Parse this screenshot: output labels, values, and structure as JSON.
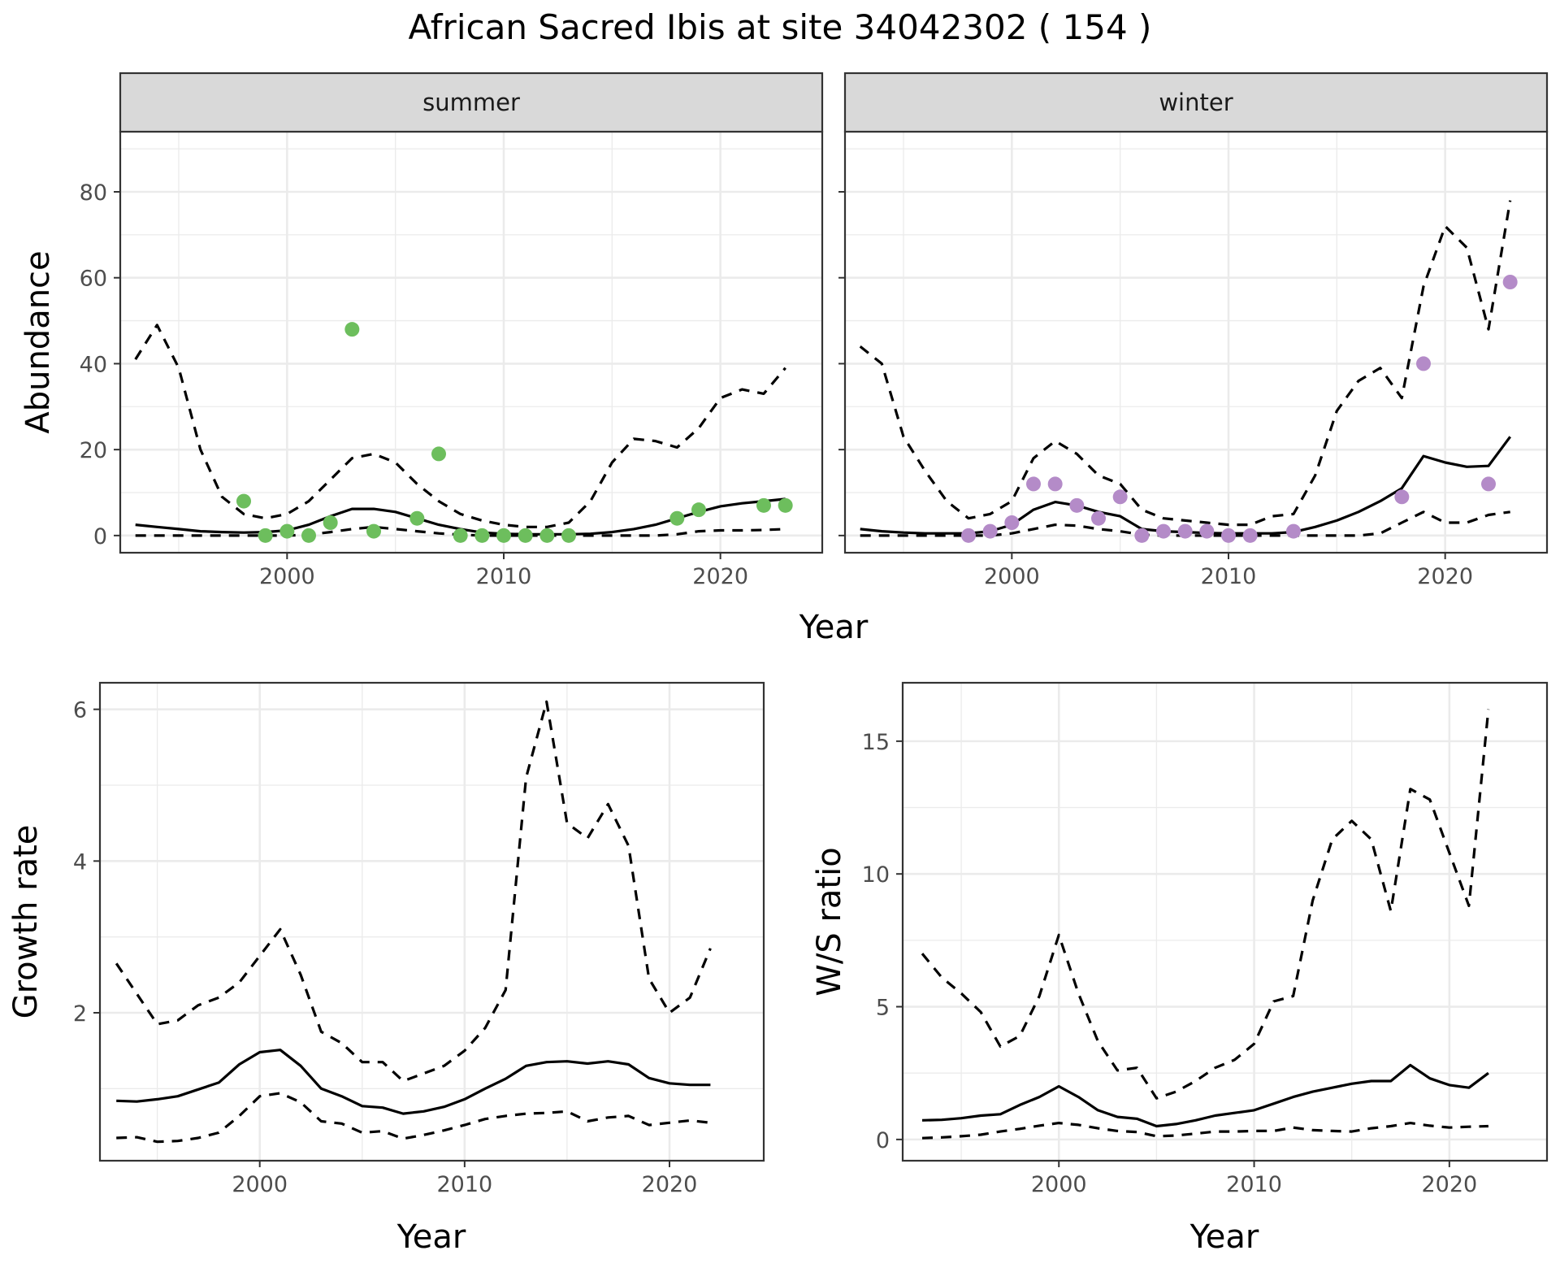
{
  "title": "African Sacred Ibis at site 34042302 ( 154 )",
  "colors": {
    "summer_points": "#6DBE5D",
    "winter_points": "#B48BC8",
    "strip_fill": "#D9D9D9",
    "grid": "#EBEBEB",
    "line": "#000000"
  },
  "chart_data": [
    {
      "type": "line",
      "panel": "summer",
      "strip_label": "summer",
      "xlabel": "Year",
      "ylabel": "Abundance",
      "xlim": [
        1992.3,
        2024.7
      ],
      "ylim": [
        -4,
        94
      ],
      "xticks": [
        2000,
        2010,
        2020
      ],
      "yticks": [
        0,
        20,
        40,
        60,
        80
      ],
      "x": [
        1993,
        1994,
        1995,
        1996,
        1997,
        1998,
        1999,
        2000,
        2001,
        2002,
        2003,
        2004,
        2005,
        2006,
        2007,
        2008,
        2009,
        2010,
        2011,
        2012,
        2013,
        2014,
        2015,
        2016,
        2017,
        2018,
        2019,
        2020,
        2021,
        2022,
        2023
      ],
      "series": [
        {
          "style": "dashed",
          "values": [
            41,
            49,
            39,
            20,
            9,
            5,
            4,
            5,
            8,
            13,
            18,
            19,
            17,
            12,
            8,
            5,
            3.5,
            2.5,
            2,
            2,
            3,
            8,
            17,
            22.5,
            22,
            20.5,
            25,
            32,
            34,
            33,
            39
          ]
        },
        {
          "style": "solid",
          "values": [
            2.5,
            2,
            1.5,
            1,
            0.8,
            0.7,
            0.8,
            1.2,
            2.5,
            4.5,
            6.2,
            6.2,
            5.5,
            4,
            2.5,
            1.5,
            0.7,
            0.4,
            0.3,
            0.3,
            0.3,
            0.4,
            0.8,
            1.5,
            2.5,
            4,
            5.5,
            6.8,
            7.5,
            8,
            8.5
          ]
        },
        {
          "style": "dashed",
          "values": [
            0,
            0,
            0,
            0,
            0,
            0,
            0,
            0,
            0.2,
            0.8,
            1.5,
            2,
            1.5,
            1,
            0.5,
            0.2,
            0,
            0,
            0,
            0,
            0,
            0,
            0,
            0,
            0,
            0.3,
            1,
            1.2,
            1.2,
            1.3,
            1.5
          ]
        }
      ],
      "points": {
        "x": [
          1998,
          1999,
          2000,
          2001,
          2002,
          2003,
          2004,
          2006,
          2007,
          2008,
          2009,
          2010,
          2011,
          2012,
          2013,
          2018,
          2019,
          2022,
          2023
        ],
        "y": [
          8,
          0,
          1,
          0,
          3,
          48,
          1,
          4,
          19,
          0,
          0,
          0,
          0,
          0,
          0,
          4,
          6,
          7,
          7
        ]
      }
    },
    {
      "type": "line",
      "panel": "winter",
      "strip_label": "winter",
      "xlabel": "Year",
      "ylabel": "Abundance",
      "xlim": [
        1992.3,
        2024.7
      ],
      "ylim": [
        -4,
        94
      ],
      "xticks": [
        2000,
        2010,
        2020
      ],
      "yticks": [
        0,
        20,
        40,
        60,
        80
      ],
      "x": [
        1993,
        1994,
        1995,
        1996,
        1997,
        1998,
        1999,
        2000,
        2001,
        2002,
        2003,
        2004,
        2005,
        2006,
        2007,
        2008,
        2009,
        2010,
        2011,
        2012,
        2013,
        2014,
        2015,
        2016,
        2017,
        2018,
        2019,
        2020,
        2021,
        2022,
        2023
      ],
      "series": [
        {
          "style": "dashed",
          "values": [
            44,
            40,
            23,
            15,
            8,
            4,
            5,
            8,
            18,
            22,
            19,
            14,
            12,
            6,
            4,
            3.5,
            3,
            2.5,
            2.5,
            4.5,
            5,
            14,
            29,
            36,
            39,
            32,
            58,
            72,
            67,
            48,
            78
          ]
        },
        {
          "style": "solid",
          "values": [
            1.5,
            1,
            0.7,
            0.5,
            0.5,
            0.5,
            1,
            2.5,
            6,
            7.8,
            7,
            5.5,
            4.5,
            1.5,
            1,
            0.8,
            0.6,
            0.5,
            0.5,
            0.5,
            0.8,
            2,
            3.5,
            5.5,
            8,
            11,
            18.5,
            17,
            16,
            16.2,
            23
          ]
        },
        {
          "style": "dashed",
          "values": [
            0,
            0,
            0,
            0,
            0,
            0,
            0,
            0.5,
            1.5,
            2.5,
            2.3,
            1.5,
            1,
            0.2,
            0,
            0,
            0,
            0,
            0,
            0,
            0,
            0,
            0,
            0,
            0.5,
            3,
            5.5,
            3,
            3,
            4.8,
            5.5
          ]
        }
      ],
      "points": {
        "x": [
          1998,
          1999,
          2000,
          2001,
          2002,
          2003,
          2004,
          2005,
          2006,
          2007,
          2008,
          2009,
          2010,
          2011,
          2013,
          2018,
          2019,
          2022,
          2023
        ],
        "y": [
          0,
          1,
          3,
          12,
          12,
          7,
          4,
          9,
          0,
          1,
          1,
          1,
          0,
          0,
          1,
          9,
          40,
          12,
          59
        ]
      }
    },
    {
      "type": "line",
      "panel": "growth",
      "xlabel": "Year",
      "ylabel": "Growth rate",
      "xlim": [
        1992.2,
        2024.6
      ],
      "ylim": [
        0.05,
        6.35
      ],
      "xticks": [
        2000,
        2010,
        2020
      ],
      "yticks": [
        2,
        4,
        6
      ],
      "x": [
        1993,
        1994,
        1995,
        1996,
        1997,
        1998,
        1999,
        2000,
        2001,
        2002,
        2003,
        2004,
        2005,
        2006,
        2007,
        2008,
        2009,
        2010,
        2011,
        2012,
        2013,
        2014,
        2015,
        2016,
        2017,
        2018,
        2019,
        2020,
        2021,
        2022
      ],
      "series": [
        {
          "style": "dashed",
          "values": [
            2.65,
            2.25,
            1.85,
            1.9,
            2.1,
            2.2,
            2.4,
            2.75,
            3.1,
            2.5,
            1.75,
            1.6,
            1.35,
            1.35,
            1.1,
            1.2,
            1.3,
            1.5,
            1.8,
            2.3,
            5.1,
            6.1,
            4.5,
            4.3,
            4.75,
            4.2,
            2.45,
            2.0,
            2.2,
            2.85
          ]
        },
        {
          "style": "solid",
          "values": [
            0.84,
            0.83,
            0.86,
            0.9,
            0.99,
            1.08,
            1.32,
            1.48,
            1.51,
            1.3,
            1.0,
            0.9,
            0.77,
            0.75,
            0.67,
            0.7,
            0.76,
            0.86,
            1.0,
            1.13,
            1.3,
            1.35,
            1.36,
            1.33,
            1.36,
            1.32,
            1.14,
            1.07,
            1.05,
            1.05
          ]
        },
        {
          "style": "dashed",
          "values": [
            0.35,
            0.36,
            0.3,
            0.31,
            0.35,
            0.42,
            0.64,
            0.9,
            0.94,
            0.82,
            0.57,
            0.54,
            0.42,
            0.44,
            0.34,
            0.39,
            0.45,
            0.52,
            0.6,
            0.64,
            0.67,
            0.68,
            0.7,
            0.57,
            0.62,
            0.64,
            0.52,
            0.55,
            0.58,
            0.55
          ]
        }
      ]
    },
    {
      "type": "line",
      "panel": "ratio",
      "xlabel": "Year",
      "ylabel": "W/S ratio",
      "xlim": [
        1992.0,
        2025.0
      ],
      "ylim": [
        -0.8,
        17.2
      ],
      "xticks": [
        2000,
        2010,
        2020
      ],
      "yticks": [
        0,
        5,
        10,
        15
      ],
      "x": [
        1993,
        1994,
        1995,
        1996,
        1997,
        1998,
        1999,
        2000,
        2001,
        2002,
        2003,
        2004,
        2005,
        2006,
        2007,
        2008,
        2009,
        2010,
        2011,
        2012,
        2013,
        2014,
        2015,
        2016,
        2017,
        2018,
        2019,
        2020,
        2021,
        2022
      ],
      "series": [
        {
          "style": "dashed",
          "values": [
            7.0,
            6.1,
            5.5,
            4.8,
            3.5,
            3.9,
            5.4,
            7.7,
            5.5,
            3.7,
            2.6,
            2.7,
            1.55,
            1.8,
            2.2,
            2.7,
            3.0,
            3.6,
            5.2,
            5.4,
            9.0,
            11.3,
            12.0,
            11.3,
            8.6,
            13.2,
            12.8,
            10.8,
            8.8,
            16.2
          ]
        },
        {
          "style": "solid",
          "values": [
            0.72,
            0.74,
            0.8,
            0.9,
            0.95,
            1.3,
            1.6,
            2.0,
            1.6,
            1.1,
            0.85,
            0.78,
            0.5,
            0.58,
            0.72,
            0.9,
            1.0,
            1.1,
            1.35,
            1.6,
            1.8,
            1.95,
            2.1,
            2.2,
            2.2,
            2.8,
            2.3,
            2.05,
            1.95,
            2.5
          ]
        },
        {
          "style": "dashed",
          "values": [
            0.05,
            0.08,
            0.12,
            0.18,
            0.3,
            0.4,
            0.52,
            0.62,
            0.55,
            0.42,
            0.32,
            0.28,
            0.12,
            0.15,
            0.22,
            0.3,
            0.3,
            0.32,
            0.32,
            0.45,
            0.35,
            0.32,
            0.3,
            0.42,
            0.5,
            0.62,
            0.52,
            0.45,
            0.48,
            0.5
          ]
        }
      ]
    }
  ]
}
